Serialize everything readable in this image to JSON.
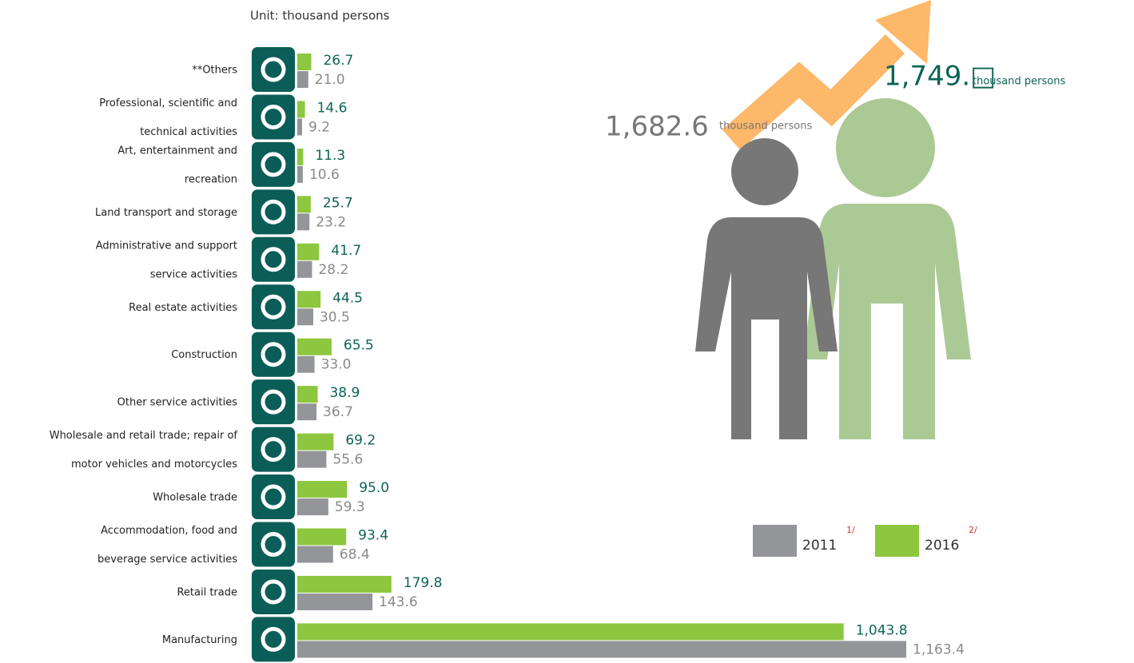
{
  "chart_data": {
    "type": "bar",
    "orientation": "horizontal",
    "subtitle": "Unit: thousand persons",
    "categories": [
      [
        "**Others"
      ],
      [
        "Professional, scientific and",
        "technical activities"
      ],
      [
        "Art, entertainment and",
        "recreation"
      ],
      [
        "Land transport and storage"
      ],
      [
        "Administrative and support",
        "service activities"
      ],
      [
        "Real estate activities"
      ],
      [
        "Construction"
      ],
      [
        "Other service activities"
      ],
      [
        "Wholesale and retail trade; repair of",
        "motor vehicles and motorcycles"
      ],
      [
        "Wholesale trade"
      ],
      [
        "Accommodation, food and",
        "beverage service activities"
      ],
      [
        "Retail trade"
      ],
      [
        "Manufacturing"
      ]
    ],
    "series": [
      {
        "name": "2011",
        "note": "1/",
        "color": "#939598",
        "values": [
          21.0,
          9.2,
          10.6,
          23.2,
          28.2,
          30.5,
          33.0,
          36.7,
          55.6,
          59.3,
          68.4,
          143.6,
          1163.4
        ],
        "value_labels": [
          "21.0",
          "9.2",
          "10.6",
          "23.2",
          "28.2",
          "30.5",
          "33.0",
          "36.7",
          "55.6",
          "59.3",
          "68.4",
          "143.6",
          "1,163.4"
        ]
      },
      {
        "name": "2016",
        "note": "2/",
        "color": "#8dc63f",
        "values": [
          26.7,
          14.6,
          11.3,
          25.7,
          41.7,
          44.5,
          65.5,
          38.9,
          69.2,
          95.0,
          93.4,
          179.8,
          1043.8
        ],
        "value_labels": [
          "26.7",
          "14.6",
          "11.3",
          "25.7",
          "41.7",
          "44.5",
          "65.5",
          "38.9",
          "69.2",
          "95.0",
          "93.4",
          "179.8",
          "1,043.8"
        ]
      }
    ],
    "xlim": [
      0,
      1200
    ],
    "totals": [
      {
        "value": 1682.6,
        "label": "1,682.6",
        "unit": "thousand persons"
      },
      {
        "label": "1,749.□",
        "unit": "thousand persons"
      }
    ]
  }
}
